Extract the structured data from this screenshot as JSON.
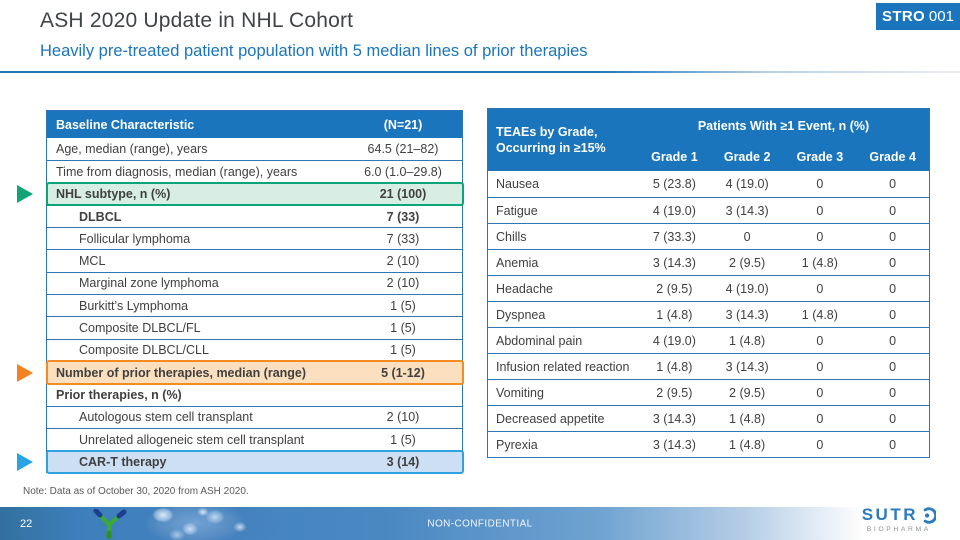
{
  "header": {
    "title": "ASH 2020 Update in NHL Cohort",
    "subtitle": "Heavily pre-treated patient population with 5 median lines of prior therapies",
    "badge": {
      "brand": "STRO",
      "number": "001"
    }
  },
  "baseline_table": {
    "col_label": "Baseline Characteristic",
    "col_value": "(N=21)",
    "rows": [
      {
        "label": "Age, median (range), years",
        "value": "64.5 (21–82)"
      },
      {
        "label": "Time from diagnosis, median (range), years",
        "value": "6.0 (1.0–29.8)"
      },
      {
        "label": "NHL subtype, n (%)",
        "value": "21 (100)",
        "bold": true,
        "highlight": "green",
        "arrow": "green"
      },
      {
        "label": "DLBCL",
        "value": "7 (33)",
        "bold": true,
        "indent": true
      },
      {
        "label": "Follicular lymphoma",
        "value": "7 (33)",
        "indent": true
      },
      {
        "label": "MCL",
        "value": "2 (10)",
        "indent": true
      },
      {
        "label": "Marginal zone lymphoma",
        "value": "2 (10)",
        "indent": true
      },
      {
        "label": "Burkitt’s Lymphoma",
        "value": "1 (5)",
        "indent": true
      },
      {
        "label": "Composite DLBCL/FL",
        "value": "1 (5)",
        "indent": true
      },
      {
        "label": "Composite DLBCL/CLL",
        "value": "1 (5)",
        "indent": true
      },
      {
        "label": "Number of prior therapies, median (range)",
        "value": "5 (1-12)",
        "bold": true,
        "highlight": "orange",
        "arrow": "orange"
      },
      {
        "label": "Prior therapies, n (%)",
        "value": "",
        "bold": true
      },
      {
        "label": "Autologous stem cell transplant",
        "value": "2 (10)",
        "indent": true
      },
      {
        "label": "Unrelated allogeneic stem cell transplant",
        "value": "1 (5)",
        "indent": true
      },
      {
        "label": "CAR-T therapy",
        "value": "3 (14)",
        "bold": true,
        "indent": true,
        "highlight": "blue",
        "arrow": "blue"
      }
    ]
  },
  "teae_table": {
    "corner_line1": "TEAEs by Grade,",
    "corner_line2": "Occurring in ≥15%",
    "span_header": "Patients With ≥1 Event, n (%)",
    "grade_headers": [
      "Grade 1",
      "Grade 2",
      "Grade 3",
      "Grade 4"
    ],
    "rows": [
      {
        "label": "Nausea",
        "values": [
          "5 (23.8)",
          "4 (19.0)",
          "0",
          "0"
        ]
      },
      {
        "label": "Fatigue",
        "values": [
          "4 (19.0)",
          "3 (14.3)",
          "0",
          "0"
        ]
      },
      {
        "label": "Chills",
        "values": [
          "7 (33.3)",
          "0",
          "0",
          "0"
        ]
      },
      {
        "label": "Anemia",
        "values": [
          "3 (14.3)",
          "2 (9.5)",
          "1 (4.8)",
          "0"
        ]
      },
      {
        "label": "Headache",
        "values": [
          "2 (9.5)",
          "4 (19.0)",
          "0",
          "0"
        ]
      },
      {
        "label": "Dyspnea",
        "values": [
          "1 (4.8)",
          "3 (14.3)",
          "1 (4.8)",
          "0"
        ]
      },
      {
        "label": "Abdominal pain",
        "values": [
          "4 (19.0)",
          "1 (4.8)",
          "0",
          "0"
        ]
      },
      {
        "label": "Infusion related reaction",
        "values": [
          "1 (4.8)",
          "3 (14.3)",
          "0",
          "0"
        ]
      },
      {
        "label": "Vomiting",
        "values": [
          "2 (9.5)",
          "2 (9.5)",
          "0",
          "0"
        ]
      },
      {
        "label": "Decreased appetite",
        "values": [
          "3 (14.3)",
          "1 (4.8)",
          "0",
          "0"
        ]
      },
      {
        "label": "Pyrexia",
        "values": [
          "3 (14.3)",
          "1 (4.8)",
          "0",
          "0"
        ]
      }
    ]
  },
  "note": "Note: Data as of October 30, 2020 from ASH 2020.",
  "footer": {
    "page_number": "22",
    "classification": "NON-CONFIDENTIAL",
    "logo_word": "SUTR",
    "logo_sub": "BIOPHARMA"
  },
  "colors": {
    "brand_blue": "#1b75bc",
    "table_border_blue": "#2e75b6",
    "text_dark": "#404040",
    "highlight_green": "#0ba578",
    "highlight_orange": "#f68c21",
    "highlight_blue": "#31a2e0"
  }
}
